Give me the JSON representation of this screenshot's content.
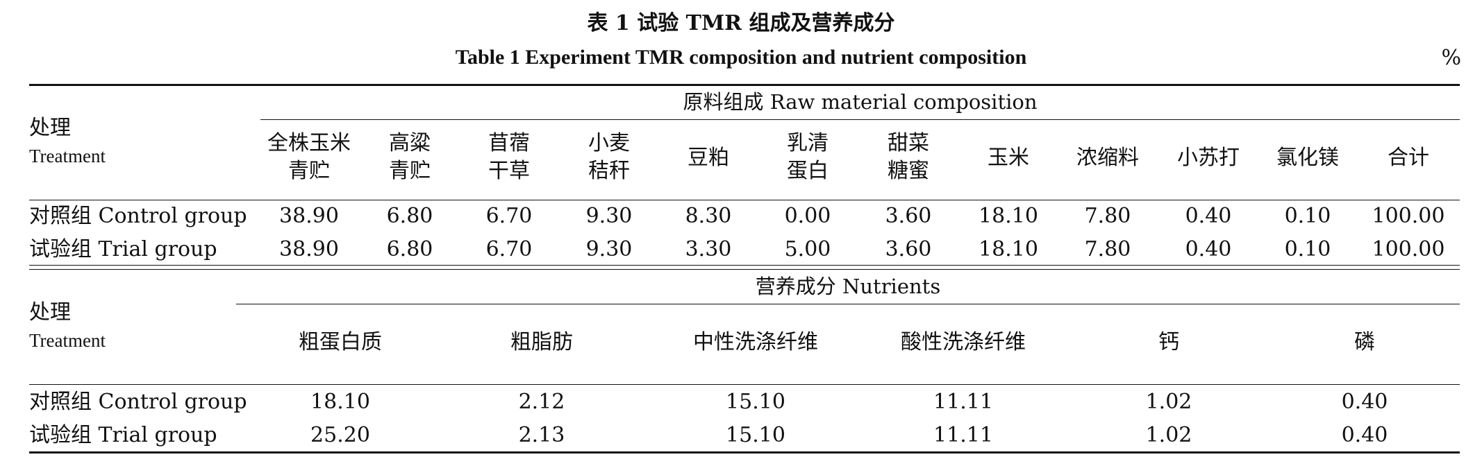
{
  "title_cn": "表 1  试验 TMR 组成及营养成分",
  "title_en": "Table 1   Experiment TMR composition and nutrient composition",
  "unit": "%",
  "section1": {
    "group_header": "原料组成 Raw material composition",
    "treatment_cn": "处理",
    "treatment_en": "Treatment",
    "columns": [
      [
        "全株玉米",
        "青贮"
      ],
      [
        "高粱",
        "青贮"
      ],
      [
        "苜蓿",
        "干草"
      ],
      [
        "小麦",
        "秸秆"
      ],
      [
        "豆粕"
      ],
      [
        "乳清",
        "蛋白"
      ],
      [
        "甜菜",
        "糖蜜"
      ],
      [
        "玉米"
      ],
      [
        "浓缩料"
      ],
      [
        "小苏打"
      ],
      [
        "氯化镁"
      ],
      [
        "合计"
      ]
    ],
    "rows": [
      {
        "label": "对照组 Control group",
        "values": [
          "38.90",
          "6.80",
          "6.70",
          "9.30",
          "8.30",
          "0.00",
          "3.60",
          "18.10",
          "7.80",
          "0.40",
          "0.10",
          "100.00"
        ]
      },
      {
        "label": "试验组 Trial group",
        "values": [
          "38.90",
          "6.80",
          "6.70",
          "9.30",
          "3.30",
          "5.00",
          "3.60",
          "18.10",
          "7.80",
          "0.40",
          "0.10",
          "100.00"
        ]
      }
    ]
  },
  "section2": {
    "group_header": "营养成分 Nutrients",
    "treatment_cn": "处理",
    "treatment_en": "Treatment",
    "columns": [
      "粗蛋白质",
      "粗脂肪",
      "中性洗涤纤维",
      "酸性洗涤纤维",
      "钙",
      "磷"
    ],
    "rows": [
      {
        "label": "对照组 Control group",
        "values": [
          "18.10",
          "2.12",
          "15.10",
          "11.11",
          "1.02",
          "0.40"
        ]
      },
      {
        "label": "试验组 Trial group",
        "values": [
          "25.20",
          "2.13",
          "15.10",
          "11.11",
          "1.02",
          "0.40"
        ]
      }
    ]
  }
}
